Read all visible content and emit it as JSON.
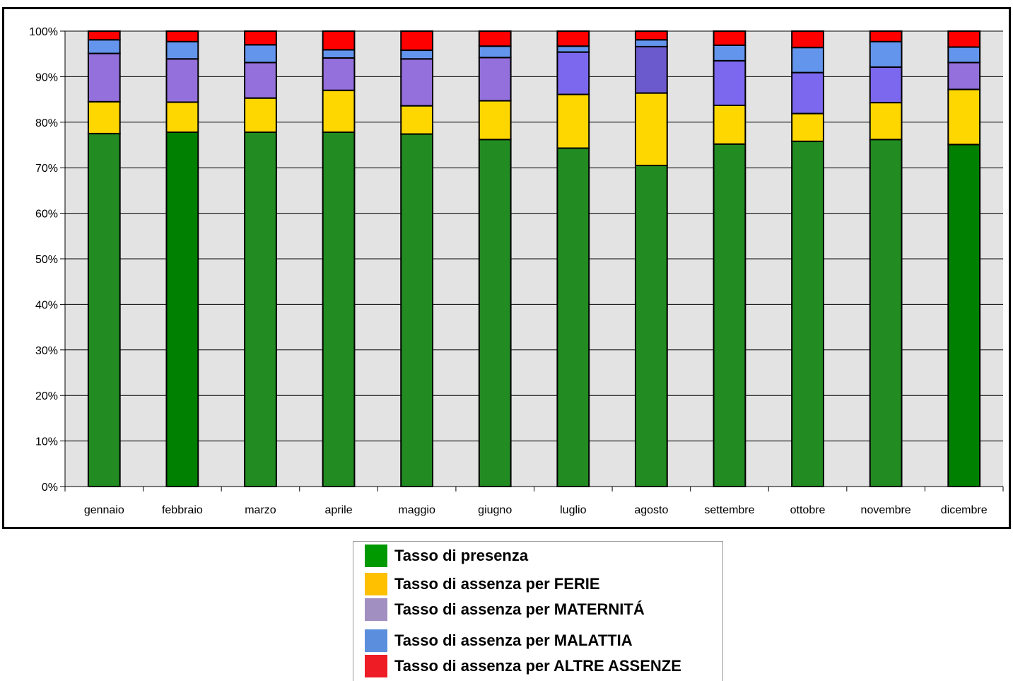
{
  "chart_data": {
    "type": "bar",
    "stacked": true,
    "title": "",
    "xlabel": "",
    "ylabel": "",
    "ylim": [
      0,
      100
    ],
    "yticks": [
      0,
      10,
      20,
      30,
      40,
      50,
      60,
      70,
      80,
      90,
      100
    ],
    "ytick_suffix": "%",
    "grid": true,
    "legend_position": "bottom",
    "categories": [
      "gennaio",
      "febbraio",
      "marzo",
      "aprile",
      "maggio",
      "giugno",
      "luglio",
      "agosto",
      "settembre",
      "ottobre",
      "novembre",
      "dicembre"
    ],
    "series": [
      {
        "name": "Tasso di presenza",
        "color": "#228b22",
        "legend_color": "#009900",
        "values": [
          77.5,
          77.8,
          77.8,
          77.8,
          77.4,
          76.2,
          74.3,
          70.5,
          75.2,
          75.8,
          76.2,
          75.1
        ]
      },
      {
        "name": "Tasso di assenza per FERIE",
        "color": "#ffd700",
        "legend_color": "#ffc000",
        "values": [
          7.0,
          6.6,
          7.5,
          9.2,
          6.2,
          8.5,
          11.8,
          15.9,
          8.5,
          6.1,
          8.1,
          12.1
        ]
      },
      {
        "name": "Tasso di assenza per MATERNITÁ",
        "color": "#9370db",
        "legend_color": "#a08fc0",
        "values": [
          10.6,
          9.5,
          7.8,
          7.1,
          10.3,
          9.5,
          9.3,
          10.2,
          9.8,
          9.0,
          7.8,
          5.9
        ]
      },
      {
        "name": "Tasso di assenza per MALATTIA",
        "color": "#6495ed",
        "legend_color": "#5b8fdd",
        "values": [
          3.0,
          3.8,
          3.9,
          1.8,
          1.9,
          2.5,
          1.3,
          1.5,
          3.4,
          5.5,
          5.6,
          3.4
        ]
      },
      {
        "name": "Tasso di assenza per ALTRE ASSENZE",
        "color": "#ff0000",
        "legend_color": "#ee1c25",
        "values": [
          1.9,
          2.3,
          3.0,
          4.1,
          4.2,
          3.3,
          3.3,
          1.9,
          3.1,
          3.6,
          2.3,
          3.5
        ]
      }
    ],
    "highlight_colors": {
      "febbraio_presenza": "#008000",
      "dicembre_presenza": "#008000",
      "agosto_maternita": "#6a5acd",
      "luglio_maternita": "#7b68ee",
      "settembre_maternita": "#7b68ee",
      "ottobre_maternita": "#7b68ee",
      "novembre_maternita": "#7b68ee"
    }
  }
}
